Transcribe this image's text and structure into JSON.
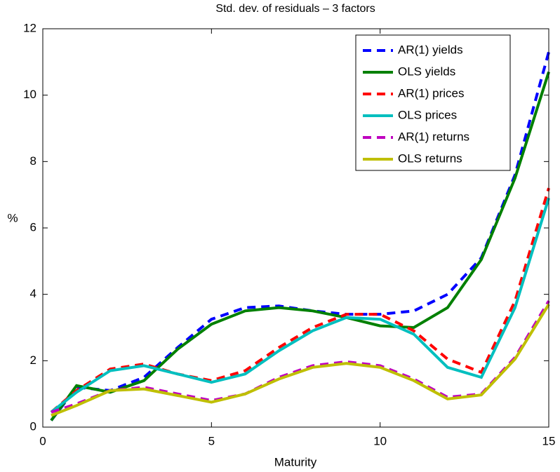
{
  "chart_data": {
    "type": "line",
    "title": "Std. dev. of residuals – 3 factors",
    "x_label": "Maturity",
    "y_label": "%",
    "x": [
      0.25,
      1,
      2,
      3,
      4,
      5,
      6,
      7,
      8,
      9,
      10,
      11,
      12,
      13,
      14,
      15
    ],
    "xlim": [
      0,
      15
    ],
    "xticks": [
      0,
      5,
      10,
      15
    ],
    "ylim": [
      0,
      12
    ],
    "yticks": [
      0,
      2,
      4,
      6,
      8,
      10,
      12
    ],
    "legend": "upper right",
    "series": [
      {
        "name": "AR(1) yields",
        "color": "#0000ff",
        "dash": true,
        "values": [
          0.2,
          1.2,
          1.1,
          1.5,
          2.4,
          3.25,
          3.6,
          3.65,
          3.5,
          3.4,
          3.4,
          3.5,
          4.0,
          5.1,
          7.6,
          11.3
        ]
      },
      {
        "name": "OLS yields",
        "color": "#008000",
        "dash": false,
        "values": [
          0.2,
          1.25,
          1.05,
          1.4,
          2.35,
          3.1,
          3.5,
          3.6,
          3.5,
          3.3,
          3.05,
          3.0,
          3.6,
          5.05,
          7.5,
          10.7
        ]
      },
      {
        "name": "AR(1) prices",
        "color": "#ff0000",
        "dash": true,
        "values": [
          0.45,
          1.1,
          1.75,
          1.9,
          1.6,
          1.4,
          1.7,
          2.4,
          3.0,
          3.4,
          3.4,
          2.9,
          2.05,
          1.65,
          3.8,
          7.2
        ]
      },
      {
        "name": "OLS prices",
        "color": "#00bfbf",
        "dash": false,
        "values": [
          0.45,
          1.05,
          1.7,
          1.85,
          1.6,
          1.35,
          1.6,
          2.3,
          2.9,
          3.3,
          3.25,
          2.8,
          1.8,
          1.5,
          3.6,
          6.9
        ]
      },
      {
        "name": "AR(1) returns",
        "color": "#bf00bf",
        "dash": true,
        "values": [
          0.45,
          0.7,
          1.1,
          1.2,
          1.0,
          0.8,
          1.0,
          1.5,
          1.85,
          1.97,
          1.85,
          1.45,
          0.9,
          1.0,
          2.1,
          3.8
        ]
      },
      {
        "name": "OLS returns",
        "color": "#bfbf00",
        "dash": false,
        "values": [
          0.35,
          0.65,
          1.1,
          1.15,
          0.95,
          0.75,
          1.0,
          1.45,
          1.8,
          1.92,
          1.8,
          1.4,
          0.85,
          0.97,
          2.05,
          3.7
        ]
      }
    ]
  }
}
